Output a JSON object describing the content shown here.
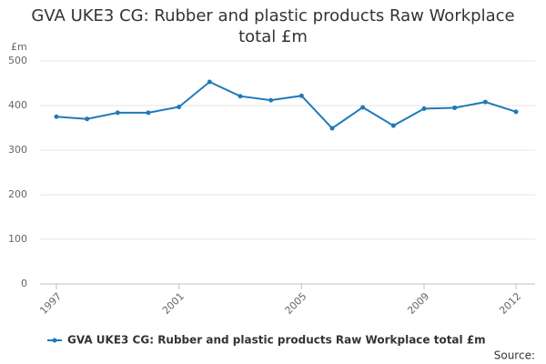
{
  "chart_data": {
    "type": "line",
    "title": "GVA UKE3 CG: Rubber and plastic products Raw Workplace total £m",
    "y_label": "£m",
    "x": [
      1997,
      1998,
      1999,
      2000,
      2001,
      2002,
      2003,
      2004,
      2005,
      2006,
      2007,
      2008,
      2009,
      2010,
      2011,
      2012
    ],
    "series": [
      {
        "name": "GVA UKE3 CG: Rubber and plastic products Raw Workplace total £m",
        "color": "#1f7ab8",
        "values": [
          375,
          370,
          384,
          384,
          397,
          453,
          421,
          412,
          422,
          349,
          396,
          355,
          393,
          395,
          408,
          386
        ]
      }
    ],
    "xlim": [
      1997,
      2012
    ],
    "xticks": [
      1997,
      2001,
      2005,
      2009,
      2012
    ],
    "ylim": [
      0,
      500
    ],
    "yticks": [
      0,
      100,
      200,
      300,
      400,
      500
    ],
    "grid": true,
    "legend": "bottom",
    "source": "Source:"
  }
}
